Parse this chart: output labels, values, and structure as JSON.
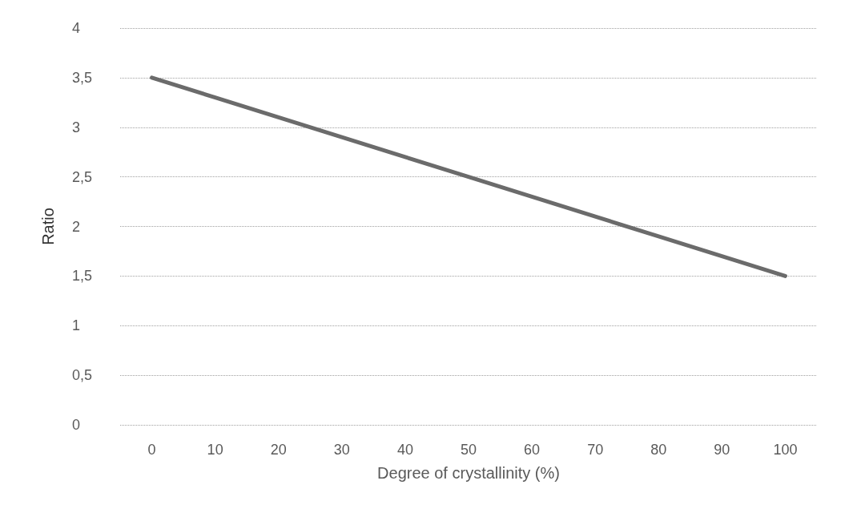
{
  "chart_data": {
    "type": "line",
    "xlabel": "Degree of crystallinity (%)",
    "ylabel": "Ratio",
    "categories": [
      "0",
      "10",
      "20",
      "30",
      "40",
      "50",
      "60",
      "70",
      "80",
      "90",
      "100"
    ],
    "series": [
      {
        "color": "#6b6b6b",
        "values": [
          3.5,
          3.3,
          3.1,
          2.9,
          2.7,
          2.5,
          2.3,
          2.1,
          1.9,
          1.7,
          1.5
        ]
      }
    ],
    "ylim": [
      0,
      4
    ],
    "yticks": [
      0,
      {
        "value": 0.5,
        "label": "0,5"
      },
      1,
      {
        "value": 1.5,
        "label": "1,5"
      },
      2,
      {
        "value": 2.5,
        "label": "2,5"
      },
      3,
      {
        "value": 3.5,
        "label": "3,5"
      },
      4
    ],
    "grid": "y",
    "marker": "none",
    "line_style": "solid"
  }
}
